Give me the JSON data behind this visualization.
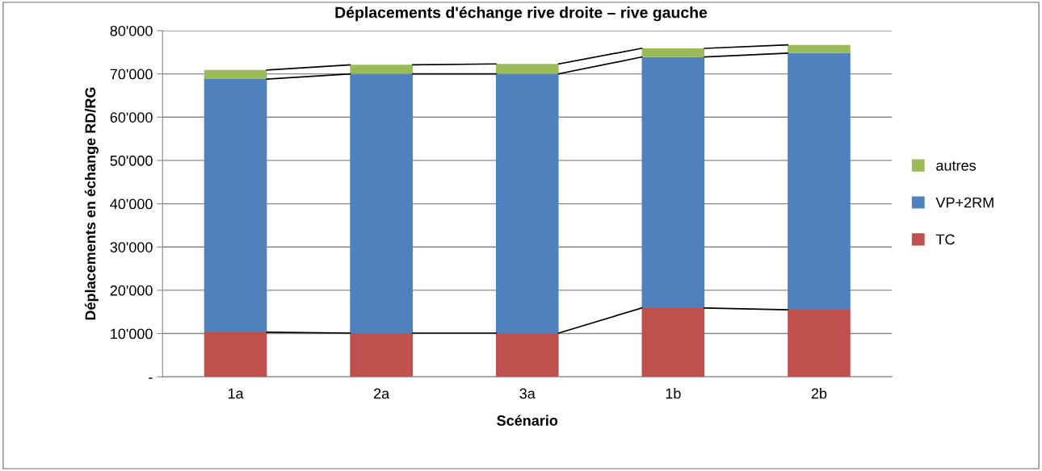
{
  "chart_data": {
    "type": "bar",
    "stacked": true,
    "title": "Déplacements d'échange rive droite – rive gauche",
    "xlabel": "Scénario",
    "ylabel": "Déplacements en échange RD/RG",
    "categories": [
      "1a",
      "2a",
      "3a",
      "1b",
      "2b"
    ],
    "series": [
      {
        "name": "TC",
        "color": "#c0504d",
        "values": [
          10300,
          10100,
          10100,
          15900,
          15500
        ]
      },
      {
        "name": "VP+2RM",
        "color": "#4f81bd",
        "values": [
          58500,
          59900,
          59900,
          58000,
          59300
        ]
      },
      {
        "name": "autres",
        "color": "#9bbb59",
        "values": [
          2100,
          2100,
          2300,
          2000,
          1900
        ]
      }
    ],
    "ylim": [
      0,
      80000
    ],
    "yticks": [
      {
        "value": 0,
        "label": "-"
      },
      {
        "value": 10000,
        "label": "10'000"
      },
      {
        "value": 20000,
        "label": "20'000"
      },
      {
        "value": 30000,
        "label": "30'000"
      },
      {
        "value": 40000,
        "label": "40'000"
      },
      {
        "value": 50000,
        "label": "50'000"
      },
      {
        "value": 60000,
        "label": "60'000"
      },
      {
        "value": 70000,
        "label": "70'000"
      },
      {
        "value": 80000,
        "label": "80'000"
      }
    ],
    "grid": "y",
    "legend": "right"
  }
}
